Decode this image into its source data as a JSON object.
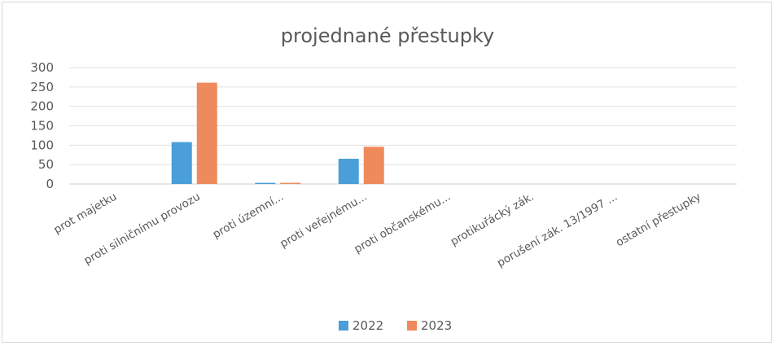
{
  "chart_data": {
    "type": "bar",
    "title": "projednané přestupky",
    "categories": [
      "prot majetku",
      "proti silničnímu provozu",
      "proti územní...",
      "proti veřejnému...",
      "proti občanskému...",
      "protikuřácký zák.",
      "porušení zák. 13/1997 ...",
      "ostatní přestupky"
    ],
    "series": [
      {
        "name": "2022",
        "color": "#4a9fd8",
        "values": [
          0,
          108,
          3,
          65,
          0,
          0,
          0,
          0
        ]
      },
      {
        "name": "2023",
        "color": "#ee8a5c",
        "values": [
          0,
          261,
          3,
          96,
          0,
          0,
          0,
          0
        ]
      }
    ],
    "yticks": [
      0,
      50,
      100,
      150,
      200,
      250,
      300
    ],
    "ylim": [
      0,
      300
    ],
    "grid": true,
    "legend_position": "bottom"
  }
}
